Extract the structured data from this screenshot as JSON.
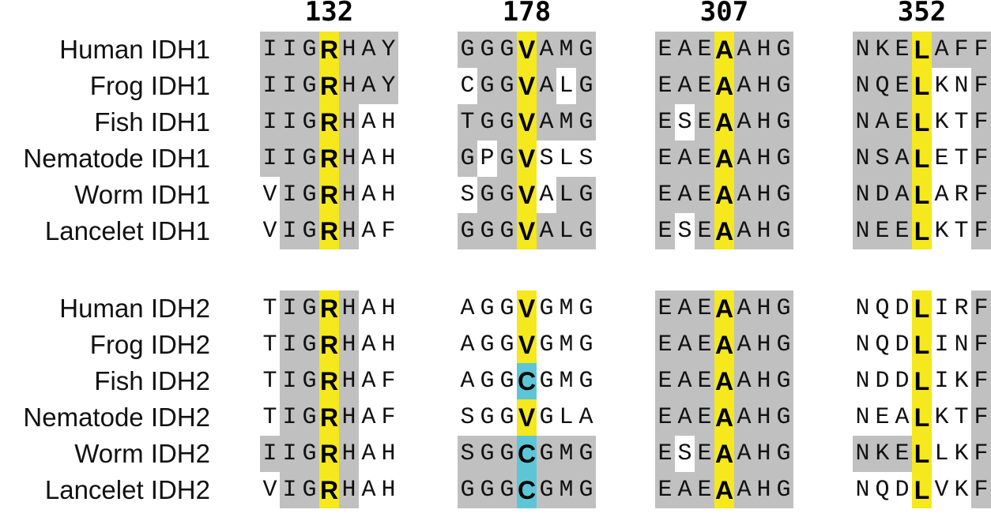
{
  "positions": [
    "132",
    "178",
    "307",
    "352"
  ],
  "colors": {
    "conserved": "#c0c0c0",
    "highlight_yellow": "#f5e81c",
    "highlight_cyan": "#5cc6d6"
  },
  "groups": [
    {
      "rows": [
        {
          "label": "Human IDH1",
          "seqs": [
            "IIGRHAY",
            "GGGVAMG",
            "EAEAAHG",
            "NKELAFF"
          ]
        },
        {
          "label": "Frog IDH1",
          "seqs": [
            "IIGRHAY",
            "CGGVALG",
            "EAEAAHG",
            "NQELKNF"
          ]
        },
        {
          "label": "Fish IDH1",
          "seqs": [
            "IIGRHAH",
            "TGGVAMG",
            "ESEAAHG",
            "NAELKTF"
          ]
        },
        {
          "label": "Nematode IDH1",
          "seqs": [
            "IIGRHAH",
            "GPGVSLS",
            "EAEAAHG",
            "NSALETF"
          ]
        },
        {
          "label": "Worm IDH1",
          "seqs": [
            "VIGRHAH",
            "SGGVALG",
            "EAEAAHG",
            "NDALARF"
          ]
        },
        {
          "label": "Lancelet IDH1",
          "seqs": [
            "VIGRHAF",
            "GGGVALG",
            "ESEAAHG",
            "NEELKTF"
          ]
        }
      ]
    },
    {
      "rows": [
        {
          "label": "Human IDH2",
          "seqs": [
            "TIGRHAH",
            "AGGVGMG",
            "EAEAAHG",
            "NQDLIRF"
          ]
        },
        {
          "label": "Frog IDH2",
          "seqs": [
            "TIGRHAH",
            "AGGVGMG",
            "EAEAAHG",
            "NQDLINF"
          ]
        },
        {
          "label": "Fish IDH2",
          "seqs": [
            "TIGRHAF",
            "AGGCGMG",
            "EAEAAHG",
            "NDDLIKF"
          ]
        },
        {
          "label": "Nematode IDH2",
          "seqs": [
            "TIGRHAF",
            "SGGVGLA",
            "EAEAAHG",
            "NEALKTF"
          ]
        },
        {
          "label": "Worm IDH2",
          "seqs": [
            "IIGRHAH",
            "SGGCGMG",
            "ESEAAHG",
            "NKELLKF"
          ]
        },
        {
          "label": "Lancelet IDH2",
          "seqs": [
            "VIGRHAH",
            "GGGCGMG",
            "EAEAAHG",
            "NQDLVKF"
          ]
        }
      ]
    }
  ],
  "shading": {
    "description_none": "",
    "cells": [
      [
        "1111111",
        "1111111",
        "1111111",
        "1111111"
      ],
      [
        "1111111",
        "0111101",
        "1111111",
        "1110001"
      ],
      [
        "1111100",
        "1111111",
        "1011111",
        "1111001"
      ],
      [
        "1111100",
        "1011000",
        "1111111",
        "1110001"
      ],
      [
        "0111100",
        "0111011",
        "1111111",
        "1110001"
      ],
      [
        "0111100",
        "1111111",
        "1011111",
        "1110001"
      ],
      [
        "0111100",
        "0001000",
        "1111111",
        "0001001"
      ],
      [
        "0111100",
        "0001000",
        "1111111",
        "0001001"
      ],
      [
        "0111100",
        "0001000",
        "1111111",
        "0001001"
      ],
      [
        "0111100",
        "0001000",
        "1111111",
        "0001001"
      ],
      [
        "1111100",
        "1111111",
        "1011111",
        "1111001"
      ],
      [
        "0111100",
        "1111111",
        "1111111",
        "0001001"
      ]
    ],
    "highlight": [
      [
        "y",
        "y",
        "y",
        "y"
      ],
      [
        "y",
        "y",
        "y",
        "y"
      ],
      [
        "y",
        "y",
        "y",
        "y"
      ],
      [
        "y",
        "y",
        "y",
        "y"
      ],
      [
        "y",
        "y",
        "y",
        "y"
      ],
      [
        "y",
        "y",
        "y",
        "y"
      ],
      [
        "y",
        "y",
        "y",
        "y"
      ],
      [
        "y",
        "y",
        "y",
        "y"
      ],
      [
        "y",
        "c",
        "y",
        "y"
      ],
      [
        "y",
        "y",
        "y",
        "y"
      ],
      [
        "y",
        "c",
        "y",
        "y"
      ],
      [
        "y",
        "c",
        "y",
        "y"
      ]
    ]
  }
}
